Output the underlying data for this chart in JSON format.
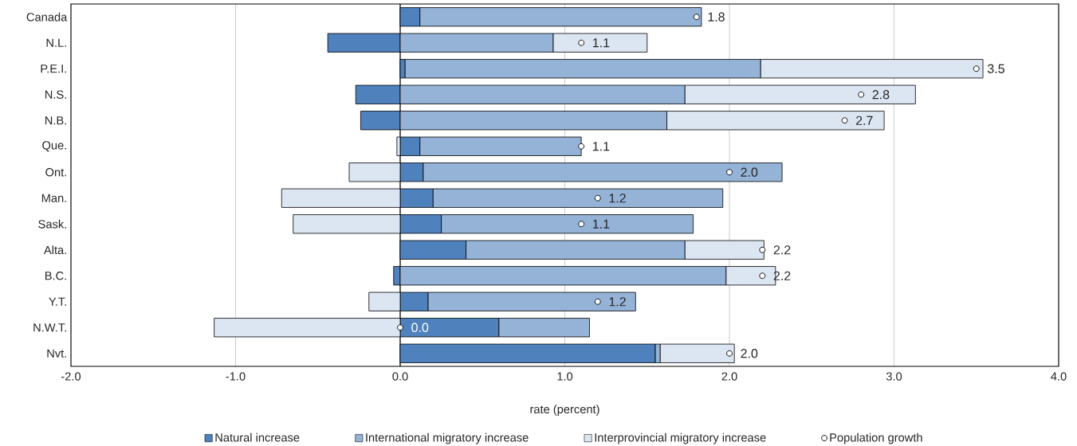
{
  "chart_data": {
    "type": "bar",
    "orientation": "horizontal",
    "stacked": true,
    "xlabel": "rate (percent)",
    "categories": [
      "Canada",
      "N.L.",
      "P.E.I.",
      "N.S.",
      "N.B.",
      "Que.",
      "Ont.",
      "Man.",
      "Sask.",
      "Alta.",
      "B.C.",
      "Y.T.",
      "N.W.T.",
      "Nvt."
    ],
    "xlim": [
      -2,
      4
    ],
    "xticks": [
      {
        "value": -2,
        "label": "-2.0"
      },
      {
        "value": -1,
        "label": "-1.0"
      },
      {
        "value": 0,
        "label": "0.0"
      },
      {
        "value": 1,
        "label": "1.0"
      },
      {
        "value": 2,
        "label": "2.0"
      },
      {
        "value": 3,
        "label": "3.0"
      },
      {
        "value": 4,
        "label": "4.0"
      }
    ],
    "grid": "x",
    "legend": "bottom",
    "series": [
      {
        "name": "Natural increase",
        "color": "#4f81bd",
        "values": [
          0.12,
          -0.44,
          0.03,
          -0.27,
          -0.24,
          0.12,
          0.14,
          0.2,
          0.25,
          0.4,
          -0.04,
          0.17,
          0.6,
          1.55
        ]
      },
      {
        "name": "International migratory increase",
        "color": "#95b3d7",
        "values": [
          1.71,
          0.93,
          2.16,
          1.73,
          1.62,
          0.98,
          2.18,
          1.76,
          1.53,
          1.33,
          1.98,
          1.26,
          0.55,
          0.03
        ]
      },
      {
        "name": "Interprovincial migratory increase",
        "color": "#dce6f2",
        "values": [
          0,
          0.57,
          1.35,
          1.4,
          1.32,
          -0.02,
          -0.31,
          -0.72,
          -0.65,
          0.48,
          0.3,
          -0.19,
          -1.13,
          0.45
        ]
      },
      {
        "name": "Population growth",
        "type": "scatter",
        "marker": "circle",
        "color": "#ffffff",
        "values": [
          1.8,
          1.1,
          3.5,
          2.8,
          2.7,
          1.1,
          2.0,
          1.2,
          1.1,
          2.2,
          2.2,
          1.2,
          0.0,
          2.0
        ],
        "value_labels": [
          "1.8",
          "1.1",
          "3.5",
          "2.8",
          "2.7",
          "1.1",
          "2.0",
          "1.2",
          "1.1",
          "2.2",
          "2.2",
          "1.2",
          "0.0",
          "2.0"
        ]
      }
    ]
  }
}
